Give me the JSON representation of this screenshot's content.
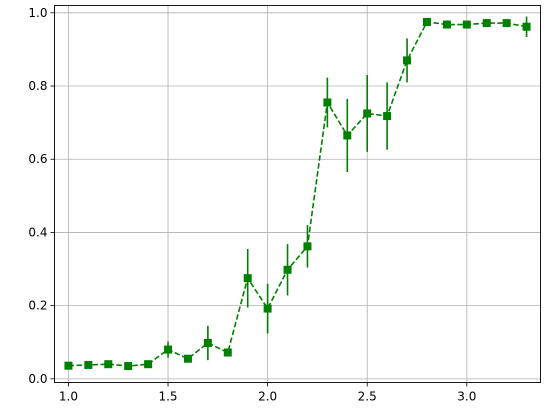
{
  "chart_data": {
    "type": "line",
    "title": "",
    "xlabel": "",
    "ylabel": "",
    "xlim": [
      0.93,
      3.37
    ],
    "ylim": [
      -0.01,
      1.02
    ],
    "x_ticks": [
      1.0,
      1.5,
      2.0,
      2.5,
      3.0
    ],
    "x_tick_labels": [
      "1.0",
      "1.5",
      "2.0",
      "2.5",
      "3.0"
    ],
    "y_ticks": [
      0.0,
      0.2,
      0.4,
      0.6,
      0.8,
      1.0
    ],
    "y_tick_labels": [
      "0.0",
      "0.2",
      "0.4",
      "0.6",
      "0.8",
      "1.0"
    ],
    "grid": true,
    "legend": "none",
    "series": [
      {
        "color": "#008000",
        "line_style": "dashed",
        "marker": "square",
        "x": [
          1.0,
          1.1,
          1.2,
          1.3,
          1.4,
          1.5,
          1.6,
          1.7,
          1.8,
          1.9,
          2.0,
          2.1,
          2.2,
          2.3,
          2.4,
          2.5,
          2.6,
          2.7,
          2.8,
          2.9,
          3.0,
          3.1,
          3.2,
          3.3
        ],
        "y": [
          0.036,
          0.038,
          0.04,
          0.035,
          0.04,
          0.08,
          0.055,
          0.098,
          0.072,
          0.275,
          0.192,
          0.298,
          0.362,
          0.755,
          0.665,
          0.725,
          0.718,
          0.87,
          0.975,
          0.968,
          0.968,
          0.972,
          0.972,
          0.962
        ],
        "error": [
          0.006,
          0.006,
          0.006,
          0.006,
          0.006,
          0.022,
          0.006,
          0.047,
          0.01,
          0.08,
          0.068,
          0.07,
          0.058,
          0.068,
          0.1,
          0.105,
          0.092,
          0.06,
          0.008,
          0.01,
          0.008,
          0.008,
          0.008,
          0.028
        ]
      }
    ]
  }
}
